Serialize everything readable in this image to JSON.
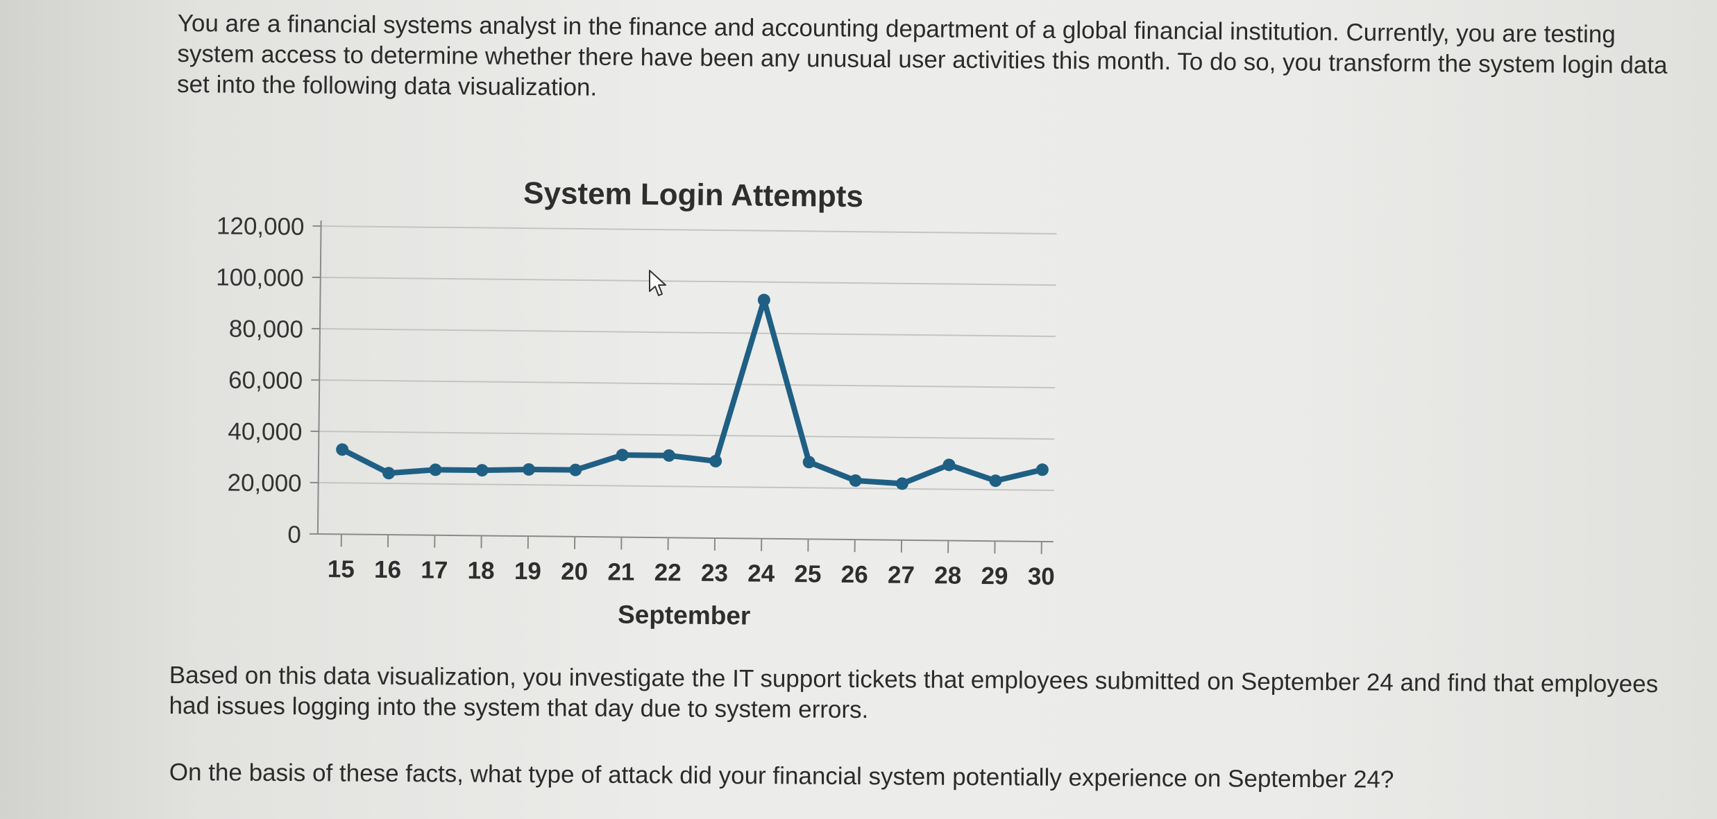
{
  "intro_text": "You are a financial systems analyst in the finance and accounting department of a global financial institution. Currently, you are testing system access to determine whether there have been any unusual user activities this month. To do so, you transform the system login data set into the following data visualization.",
  "finding_text": "Based on this data visualization, you investigate the IT support tickets that employees submitted on September 24 and find that employees had issues logging into the system that day due to system errors.",
  "question_text": "On the basis of these facts, what type of attack did your financial system potentially experience on September 24?",
  "chart_data": {
    "type": "line",
    "title": "System Login Attempts",
    "xlabel": "September",
    "ylabel": "",
    "x": [
      15,
      16,
      17,
      18,
      19,
      20,
      21,
      22,
      23,
      24,
      25,
      26,
      27,
      28,
      29,
      30
    ],
    "values": [
      33000,
      24000,
      25500,
      25500,
      26000,
      26000,
      32000,
      32000,
      30000,
      93000,
      30000,
      23000,
      22000,
      29500,
      23500,
      28000
    ],
    "ylim": [
      0,
      120000
    ],
    "yticks": [
      0,
      20000,
      40000,
      60000,
      80000,
      100000,
      120000
    ],
    "ytick_labels": [
      "0",
      "20,000",
      "40,000",
      "60,000",
      "80,000",
      "100,000",
      "120,000"
    ],
    "grid": true,
    "line_color": "#1f5f84",
    "marker_color": "#1f5f84"
  }
}
